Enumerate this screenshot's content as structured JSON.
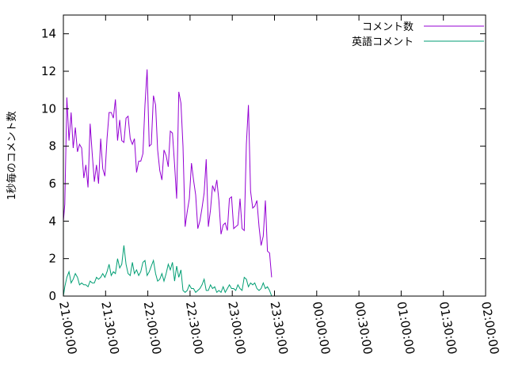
{
  "chart_data": {
    "type": "line",
    "xlabel": "",
    "ylabel": "1秒毎のコメント数",
    "ylim": [
      0,
      15
    ],
    "yticks": [
      "0",
      "2",
      "4",
      "6",
      "8",
      "10",
      "12",
      "14"
    ],
    "xticks": [
      "21:00:00",
      "21:30:00",
      "22:00:00",
      "22:30:00",
      "23:00:00",
      "23:30:00",
      "00:00:00",
      "00:30:00",
      "01:00:00",
      "01:30:00",
      "02:00:00"
    ],
    "x_start": "21:00:00",
    "x_end": "02:00:00",
    "legend_position": "top-right",
    "grid": false,
    "series": [
      {
        "name": "コメント数",
        "color": "#9400d3",
        "points": [
          [
            "21:00:00",
            4.0
          ],
          [
            "21:01:00",
            4.9
          ],
          [
            "21:02:30",
            10.6
          ],
          [
            "21:04:00",
            8.3
          ],
          [
            "21:05:30",
            9.8
          ],
          [
            "21:07:00",
            7.9
          ],
          [
            "21:08:30",
            9.0
          ],
          [
            "21:10:00",
            7.7
          ],
          [
            "21:11:30",
            8.1
          ],
          [
            "21:13:00",
            7.9
          ],
          [
            "21:14:30",
            6.3
          ],
          [
            "21:16:00",
            7.0
          ],
          [
            "21:17:30",
            5.8
          ],
          [
            "21:19:00",
            9.2
          ],
          [
            "21:20:30",
            7.6
          ],
          [
            "21:22:00",
            6.1
          ],
          [
            "21:23:30",
            7.0
          ],
          [
            "21:25:00",
            6.0
          ],
          [
            "21:26:30",
            8.4
          ],
          [
            "21:28:00",
            6.8
          ],
          [
            "21:29:30",
            6.4
          ],
          [
            "21:31:00",
            8.4
          ],
          [
            "21:32:30",
            9.8
          ],
          [
            "21:34:00",
            9.8
          ],
          [
            "21:35:30",
            9.5
          ],
          [
            "21:37:00",
            10.5
          ],
          [
            "21:38:30",
            8.3
          ],
          [
            "21:40:00",
            9.4
          ],
          [
            "21:41:30",
            8.3
          ],
          [
            "21:43:00",
            8.2
          ],
          [
            "21:44:30",
            9.5
          ],
          [
            "21:46:00",
            9.6
          ],
          [
            "21:47:30",
            8.4
          ],
          [
            "21:49:00",
            8.1
          ],
          [
            "21:50:30",
            8.4
          ],
          [
            "21:52:00",
            6.6
          ],
          [
            "21:53:30",
            7.2
          ],
          [
            "21:55:00",
            7.2
          ],
          [
            "21:56:30",
            7.6
          ],
          [
            "21:58:00",
            10.2
          ],
          [
            "21:59:30",
            12.1
          ],
          [
            "22:01:00",
            8.0
          ],
          [
            "22:02:30",
            8.1
          ],
          [
            "22:04:00",
            10.7
          ],
          [
            "22:05:30",
            10.2
          ],
          [
            "22:07:00",
            7.8
          ],
          [
            "22:08:30",
            6.7
          ],
          [
            "22:10:00",
            6.2
          ],
          [
            "22:11:30",
            7.8
          ],
          [
            "22:13:00",
            7.5
          ],
          [
            "22:14:30",
            6.9
          ],
          [
            "22:16:00",
            8.8
          ],
          [
            "22:17:30",
            8.7
          ],
          [
            "22:19:00",
            7.0
          ],
          [
            "22:20:30",
            5.2
          ],
          [
            "22:22:00",
            10.9
          ],
          [
            "22:23:30",
            10.3
          ],
          [
            "22:25:00",
            8.0
          ],
          [
            "22:26:30",
            3.7
          ],
          [
            "22:28:00",
            4.5
          ],
          [
            "22:29:30",
            5.2
          ],
          [
            "22:31:00",
            7.1
          ],
          [
            "22:32:30",
            6.2
          ],
          [
            "22:34:00",
            5.4
          ],
          [
            "22:35:30",
            3.6
          ],
          [
            "22:37:00",
            4.0
          ],
          [
            "22:38:30",
            4.7
          ],
          [
            "22:40:00",
            5.5
          ],
          [
            "22:41:30",
            7.3
          ],
          [
            "22:43:00",
            3.7
          ],
          [
            "22:44:30",
            4.6
          ],
          [
            "22:46:00",
            5.9
          ],
          [
            "22:47:30",
            5.6
          ],
          [
            "22:49:00",
            6.2
          ],
          [
            "22:50:30",
            5.1
          ],
          [
            "22:52:00",
            3.3
          ],
          [
            "22:53:30",
            3.8
          ],
          [
            "22:55:00",
            3.9
          ],
          [
            "22:56:30",
            3.5
          ],
          [
            "22:58:00",
            5.2
          ],
          [
            "22:59:30",
            5.3
          ],
          [
            "23:01:00",
            3.6
          ],
          [
            "23:02:30",
            3.7
          ],
          [
            "23:04:00",
            3.8
          ],
          [
            "23:05:30",
            5.2
          ],
          [
            "23:07:00",
            3.6
          ],
          [
            "23:08:30",
            3.5
          ],
          [
            "23:10:00",
            8.1
          ],
          [
            "23:11:30",
            10.2
          ],
          [
            "23:13:00",
            5.6
          ],
          [
            "23:14:30",
            4.7
          ],
          [
            "23:16:00",
            4.8
          ],
          [
            "23:17:30",
            5.1
          ],
          [
            "23:19:00",
            3.7
          ],
          [
            "23:20:30",
            2.7
          ],
          [
            "23:22:00",
            3.2
          ],
          [
            "23:23:30",
            5.1
          ],
          [
            "23:25:00",
            2.4
          ],
          [
            "23:26:30",
            2.3
          ],
          [
            "23:28:00",
            1.0
          ]
        ]
      },
      {
        "name": "英語コメント",
        "color": "#009e73",
        "points": [
          [
            "21:00:00",
            0.0
          ],
          [
            "21:01:00",
            0.5
          ],
          [
            "21:02:30",
            1.0
          ],
          [
            "21:04:00",
            1.3
          ],
          [
            "21:05:30",
            0.7
          ],
          [
            "21:07:00",
            0.9
          ],
          [
            "21:08:30",
            1.2
          ],
          [
            "21:10:00",
            1.0
          ],
          [
            "21:11:30",
            0.6
          ],
          [
            "21:13:00",
            0.7
          ],
          [
            "21:14:30",
            0.6
          ],
          [
            "21:16:00",
            0.6
          ],
          [
            "21:17:30",
            0.5
          ],
          [
            "21:19:00",
            0.8
          ],
          [
            "21:20:30",
            0.7
          ],
          [
            "21:22:00",
            0.7
          ],
          [
            "21:23:30",
            1.0
          ],
          [
            "21:25:00",
            0.9
          ],
          [
            "21:26:30",
            1.0
          ],
          [
            "21:28:00",
            1.2
          ],
          [
            "21:29:30",
            1.0
          ],
          [
            "21:31:00",
            1.3
          ],
          [
            "21:32:30",
            1.7
          ],
          [
            "21:34:00",
            1.1
          ],
          [
            "21:35:30",
            1.3
          ],
          [
            "21:37:00",
            1.2
          ],
          [
            "21:38:30",
            2.0
          ],
          [
            "21:40:00",
            1.5
          ],
          [
            "21:41:30",
            1.7
          ],
          [
            "21:43:00",
            2.7
          ],
          [
            "21:44:30",
            1.7
          ],
          [
            "21:46:00",
            1.2
          ],
          [
            "21:47:30",
            1.1
          ],
          [
            "21:49:00",
            1.8
          ],
          [
            "21:50:30",
            1.2
          ],
          [
            "21:52:00",
            1.4
          ],
          [
            "21:53:30",
            1.1
          ],
          [
            "21:55:00",
            1.3
          ],
          [
            "21:56:30",
            1.8
          ],
          [
            "21:58:00",
            1.9
          ],
          [
            "21:59:30",
            1.1
          ],
          [
            "22:01:00",
            1.3
          ],
          [
            "22:02:30",
            1.6
          ],
          [
            "22:04:00",
            1.9
          ],
          [
            "22:05:30",
            1.2
          ],
          [
            "22:07:00",
            0.8
          ],
          [
            "22:08:30",
            0.9
          ],
          [
            "22:10:00",
            1.2
          ],
          [
            "22:11:30",
            0.8
          ],
          [
            "22:13:00",
            1.2
          ],
          [
            "22:14:30",
            1.7
          ],
          [
            "22:16:00",
            1.4
          ],
          [
            "22:17:30",
            1.8
          ],
          [
            "22:19:00",
            0.8
          ],
          [
            "22:20:30",
            1.6
          ],
          [
            "22:22:00",
            1.0
          ],
          [
            "22:23:30",
            1.4
          ],
          [
            "22:25:00",
            0.3
          ],
          [
            "22:26:30",
            0.2
          ],
          [
            "22:28:00",
            0.3
          ],
          [
            "22:29:30",
            0.6
          ],
          [
            "22:31:00",
            0.4
          ],
          [
            "22:32:30",
            0.4
          ],
          [
            "22:34:00",
            0.2
          ],
          [
            "22:35:30",
            0.3
          ],
          [
            "22:37:00",
            0.4
          ],
          [
            "22:38:30",
            0.6
          ],
          [
            "22:40:00",
            0.9
          ],
          [
            "22:41:30",
            0.3
          ],
          [
            "22:43:00",
            0.3
          ],
          [
            "22:44:30",
            0.6
          ],
          [
            "22:46:00",
            0.4
          ],
          [
            "22:47:30",
            0.5
          ],
          [
            "22:49:00",
            0.2
          ],
          [
            "22:50:30",
            0.3
          ],
          [
            "22:52:00",
            0.2
          ],
          [
            "22:53:30",
            0.5
          ],
          [
            "22:55:00",
            0.2
          ],
          [
            "22:56:30",
            0.4
          ],
          [
            "22:58:00",
            0.6
          ],
          [
            "22:59:30",
            0.4
          ],
          [
            "23:01:00",
            0.4
          ],
          [
            "23:02:30",
            0.3
          ],
          [
            "23:04:00",
            0.6
          ],
          [
            "23:05:30",
            0.4
          ],
          [
            "23:07:00",
            0.3
          ],
          [
            "23:08:30",
            1.0
          ],
          [
            "23:10:00",
            0.9
          ],
          [
            "23:11:30",
            0.5
          ],
          [
            "23:13:00",
            0.7
          ],
          [
            "23:14:30",
            0.6
          ],
          [
            "23:16:00",
            0.7
          ],
          [
            "23:17:30",
            0.4
          ],
          [
            "23:19:00",
            0.3
          ],
          [
            "23:20:30",
            0.4
          ],
          [
            "23:22:00",
            0.7
          ],
          [
            "23:23:30",
            0.4
          ],
          [
            "23:25:00",
            0.5
          ],
          [
            "23:26:30",
            0.3
          ],
          [
            "23:28:00",
            0.0
          ]
        ]
      }
    ]
  }
}
